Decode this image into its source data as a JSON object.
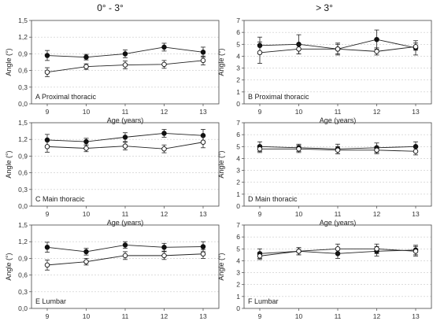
{
  "column_titles": [
    "0° - 3°",
    "> 3°"
  ],
  "chart_data": [
    {
      "type": "line",
      "panel_label": "A Proximal thoracic",
      "xlabel": "Age (years)",
      "ylabel": "Angle (°)",
      "categories": [
        "9",
        "10",
        "11",
        "12",
        "13"
      ],
      "ylim": [
        0,
        1.5
      ],
      "yticks": [
        "0,0",
        "0,3",
        "0,6",
        "0,9",
        "1,2",
        "1,5"
      ],
      "series": [
        {
          "marker": "filled",
          "values": [
            0.87,
            0.84,
            0.9,
            1.02,
            0.93
          ],
          "err": [
            0.09,
            0.05,
            0.07,
            0.07,
            0.09
          ]
        },
        {
          "marker": "open",
          "values": [
            0.57,
            0.67,
            0.7,
            0.71,
            0.78
          ],
          "err": [
            0.08,
            0.05,
            0.07,
            0.07,
            0.08
          ]
        }
      ]
    },
    {
      "type": "line",
      "panel_label": "B Proximal thoracic",
      "xlabel": "Age (years)",
      "ylabel": "Angle (°)",
      "categories": [
        "9",
        "10",
        "11",
        "12",
        "13"
      ],
      "ylim": [
        0,
        7
      ],
      "yticks": [
        "0",
        "1",
        "2",
        "3",
        "4",
        "5",
        "6",
        "7"
      ],
      "series": [
        {
          "marker": "filled",
          "values": [
            4.9,
            5.0,
            4.6,
            5.4,
            4.7
          ],
          "err": [
            0.7,
            0.8,
            0.5,
            0.8,
            0.6
          ]
        },
        {
          "marker": "open",
          "values": [
            4.3,
            4.6,
            4.6,
            4.4,
            4.8
          ],
          "err": [
            0.9,
            0.4,
            0.4,
            0.3,
            0.3
          ]
        }
      ]
    },
    {
      "type": "line",
      "panel_label": "C Main thoracic",
      "xlabel": "Age (years)",
      "ylabel": "Angle (°)",
      "categories": [
        "9",
        "10",
        "11",
        "12",
        "13"
      ],
      "ylim": [
        0,
        1.5
      ],
      "yticks": [
        "0,0",
        "0,3",
        "0,6",
        "0,9",
        "1,2",
        "1,5"
      ],
      "series": [
        {
          "marker": "filled",
          "values": [
            1.19,
            1.16,
            1.24,
            1.31,
            1.27
          ],
          "err": [
            0.1,
            0.06,
            0.08,
            0.07,
            0.11
          ]
        },
        {
          "marker": "open",
          "values": [
            1.07,
            1.04,
            1.08,
            1.03,
            1.15
          ],
          "err": [
            0.1,
            0.06,
            0.07,
            0.07,
            0.1
          ]
        }
      ]
    },
    {
      "type": "line",
      "panel_label": "D Main thoracic",
      "xlabel": "Age (years)",
      "ylabel": "Angle (°)",
      "categories": [
        "9",
        "10",
        "11",
        "12",
        "13"
      ],
      "ylim": [
        0,
        7
      ],
      "yticks": [
        "0",
        "1",
        "2",
        "3",
        "4",
        "5",
        "6",
        "7"
      ],
      "series": [
        {
          "marker": "filled",
          "values": [
            5.0,
            4.9,
            4.8,
            4.9,
            5.0
          ],
          "err": [
            0.4,
            0.3,
            0.4,
            0.4,
            0.4
          ]
        },
        {
          "marker": "open",
          "values": [
            4.8,
            4.8,
            4.7,
            4.7,
            4.6
          ],
          "err": [
            0.3,
            0.3,
            0.3,
            0.3,
            0.3
          ]
        }
      ]
    },
    {
      "type": "line",
      "panel_label": "E Lumbar",
      "xlabel": "Age (years)",
      "ylabel": "Angle (°)",
      "categories": [
        "9",
        "10",
        "11",
        "12",
        "13"
      ],
      "ylim": [
        0,
        1.5
      ],
      "yticks": [
        "0,0",
        "0,3",
        "0,6",
        "0,9",
        "1,2",
        "1,5"
      ],
      "series": [
        {
          "marker": "filled",
          "values": [
            1.1,
            1.02,
            1.14,
            1.1,
            1.11
          ],
          "err": [
            0.09,
            0.06,
            0.06,
            0.07,
            0.09
          ]
        },
        {
          "marker": "open",
          "values": [
            0.78,
            0.84,
            0.95,
            0.95,
            0.98
          ],
          "err": [
            0.09,
            0.06,
            0.07,
            0.07,
            0.08
          ]
        }
      ]
    },
    {
      "type": "line",
      "panel_label": "F Lumbar",
      "xlabel": "Age (years)",
      "ylabel": "Angle (°)",
      "categories": [
        "9",
        "10",
        "11",
        "12",
        "13"
      ],
      "ylim": [
        0,
        7
      ],
      "yticks": [
        "0",
        "1",
        "2",
        "3",
        "4",
        "5",
        "6",
        "7"
      ],
      "series": [
        {
          "marker": "filled",
          "values": [
            4.6,
            4.8,
            4.6,
            4.8,
            4.9
          ],
          "err": [
            0.4,
            0.3,
            0.4,
            0.4,
            0.4
          ]
        },
        {
          "marker": "open",
          "values": [
            4.4,
            4.8,
            5.0,
            5.0,
            4.8
          ],
          "err": [
            0.3,
            0.3,
            0.4,
            0.4,
            0.4
          ]
        }
      ]
    }
  ]
}
